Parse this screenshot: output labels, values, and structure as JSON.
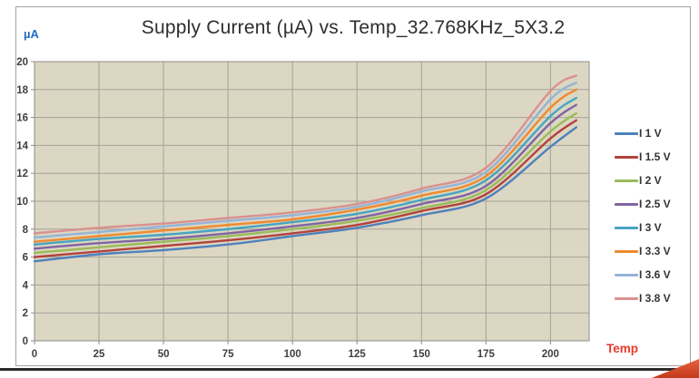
{
  "chart_data": {
    "type": "line",
    "title": "Supply Current (µA) vs. Temp_32.768KHz_5X3.2",
    "y_axis_unit_label": "µA",
    "x_axis_label": "Temp",
    "xlabel": "Temp",
    "ylabel": "µA",
    "xlim": [
      0,
      215
    ],
    "ylim": [
      0,
      20
    ],
    "x_ticks": [
      0,
      25,
      50,
      75,
      100,
      125,
      150,
      175,
      200
    ],
    "y_ticks": [
      0,
      2,
      4,
      6,
      8,
      10,
      12,
      14,
      16,
      18,
      20
    ],
    "grid": true,
    "legend_position": "right",
    "x": [
      0,
      25,
      50,
      75,
      100,
      125,
      150,
      175,
      200,
      210
    ],
    "series": [
      {
        "name": "I 1 V",
        "color": "#4F81BD",
        "values": [
          5.7,
          6.2,
          6.5,
          6.9,
          7.5,
          8.1,
          9.0,
          10.2,
          13.9,
          15.3
        ]
      },
      {
        "name": "I 1.5 V",
        "color": "#B2423C",
        "values": [
          6.0,
          6.4,
          6.8,
          7.2,
          7.7,
          8.3,
          9.3,
          10.5,
          14.5,
          15.8
        ]
      },
      {
        "name": "I 2 V",
        "color": "#9BBB59",
        "values": [
          6.3,
          6.7,
          7.1,
          7.5,
          8.0,
          8.6,
          9.5,
          10.8,
          15.0,
          16.3
        ]
      },
      {
        "name": "I 2.5 V",
        "color": "#8064A2",
        "values": [
          6.6,
          7.0,
          7.3,
          7.7,
          8.2,
          8.8,
          9.8,
          11.1,
          15.6,
          16.9
        ]
      },
      {
        "name": "I 3 V",
        "color": "#45A5C1",
        "values": [
          6.9,
          7.3,
          7.6,
          8.0,
          8.5,
          9.1,
          10.1,
          11.5,
          16.1,
          17.4
        ]
      },
      {
        "name": "I 3.3 V",
        "color": "#EF8A2F",
        "values": [
          7.1,
          7.5,
          7.9,
          8.3,
          8.7,
          9.4,
          10.4,
          11.8,
          16.7,
          18.0
        ]
      },
      {
        "name": "I 3.6 V",
        "color": "#95B3D7",
        "values": [
          7.4,
          7.8,
          8.2,
          8.6,
          9.0,
          9.6,
          10.7,
          12.1,
          17.3,
          18.5
        ]
      },
      {
        "name": "I 3.8 V",
        "color": "#D9918F",
        "values": [
          7.7,
          8.1,
          8.4,
          8.8,
          9.2,
          9.8,
          10.9,
          12.4,
          17.9,
          19.0
        ]
      }
    ],
    "plot_bg": "#DCD7C2",
    "grid_color": "#A5A199",
    "axis_color": "#8C8C8C",
    "tick_text_color": "#3F3F3F",
    "title_color": "#2E2E2E",
    "unit_label_color": "#1F6EC0",
    "x_label_color": "#E8392B",
    "frame_border_color": "#A3A3A3",
    "bottom_line_color": "#2B2B2B",
    "corner_triangle_colors": [
      "#E8633A",
      "#C23A1C"
    ]
  }
}
